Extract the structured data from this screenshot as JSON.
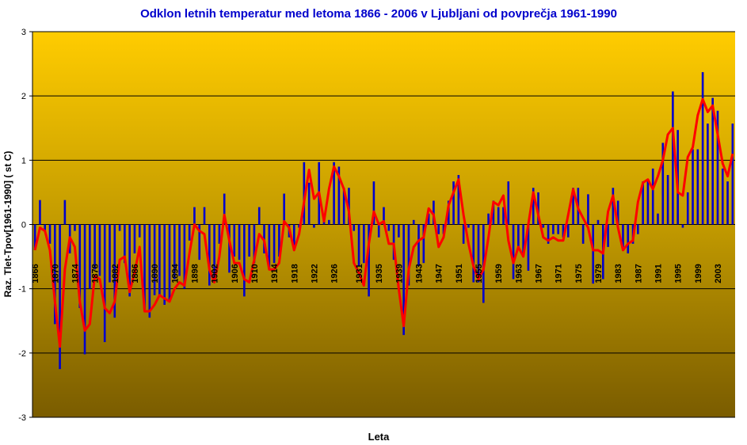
{
  "chart_data": {
    "type": "bar",
    "title": "Odklon letnih temperatur med letoma 1866 - 2006 v Ljubljani od povprečja 1961-1990",
    "y_label": "Raz. Tlet-Tpov[1961-1990] ( st C)",
    "x_label": "Leta",
    "categories": [
      "1866",
      null,
      null,
      null,
      "1870",
      null,
      null,
      null,
      "1874",
      null,
      null,
      null,
      "1878",
      null,
      null,
      null,
      "1882",
      null,
      null,
      null,
      "1886",
      null,
      null,
      null,
      "1890",
      null,
      null,
      null,
      "1894",
      null,
      null,
      null,
      "1898",
      null,
      null,
      null,
      "1902",
      null,
      null,
      null,
      "1906",
      null,
      null,
      null,
      "1910",
      null,
      null,
      null,
      "1914",
      null,
      null,
      null,
      "1918",
      null,
      null,
      null,
      "1922",
      null,
      null,
      null,
      "1926",
      null,
      null,
      null,
      null,
      "1931",
      null,
      null,
      null,
      "1935",
      null,
      null,
      null,
      "1939",
      null,
      null,
      null,
      "1943",
      null,
      null,
      null,
      "1947",
      null,
      null,
      null,
      "1951",
      null,
      null,
      null,
      "1955",
      null,
      null,
      null,
      "1959",
      null,
      null,
      null,
      "1963",
      null,
      null,
      null,
      "1967",
      null,
      null,
      null,
      "1971",
      null,
      null,
      null,
      "1975",
      null,
      null,
      null,
      "1979",
      null,
      null,
      null,
      "1983",
      null,
      null,
      null,
      "1987",
      null,
      null,
      null,
      "1991",
      null,
      null,
      null,
      "1995",
      null,
      null,
      null,
      "1999",
      null,
      null,
      null,
      "2003",
      null,
      null,
      null
    ],
    "series": [
      {
        "type": "bar",
        "color": "#0000cc",
        "values": [
          -0.4,
          0.38,
          -0.1,
          -0.3,
          -1.55,
          -2.25,
          0.38,
          -0.45,
          -0.1,
          -1.3,
          -2.02,
          -1.0,
          -0.7,
          -0.8,
          -1.83,
          -0.9,
          -1.45,
          -0.1,
          -0.6,
          -1.12,
          -0.45,
          -0.2,
          -1.32,
          -1.45,
          -1.1,
          -1.1,
          -1.25,
          -1.2,
          -0.85,
          -0.8,
          -1.0,
          -0.25,
          0.27,
          -0.55,
          0.27,
          -0.95,
          -0.85,
          -0.3,
          0.48,
          -0.75,
          -0.5,
          -0.55,
          -1.12,
          -0.5,
          -0.6,
          0.27,
          -0.45,
          -0.7,
          -0.6,
          -0.5,
          0.48,
          -0.2,
          -0.4,
          -0.05,
          0.97,
          0.65,
          -0.05,
          0.97,
          0.07,
          0.07,
          0.97,
          0.9,
          0.57,
          0.57,
          -0.1,
          -0.65,
          -0.6,
          -1.12,
          0.67,
          -0.2,
          0.27,
          -0.1,
          -0.55,
          -0.2,
          -1.72,
          -0.95,
          0.07,
          -0.65,
          -0.6,
          0.17,
          0.37,
          -0.15,
          -0.15,
          0.37,
          0.67,
          0.77,
          -0.3,
          -0.05,
          -0.9,
          -0.9,
          -1.22,
          0.17,
          0.37,
          0.27,
          0.27,
          0.67,
          -0.85,
          -0.35,
          -0.5,
          -0.72,
          0.57,
          0.5,
          -0.05,
          -0.3,
          -0.15,
          -0.15,
          -0.2,
          -0.2,
          0.57,
          0.57,
          -0.3,
          0.47,
          -0.92,
          0.07,
          -0.85,
          -0.35,
          0.57,
          0.37,
          -0.35,
          -0.45,
          -0.3,
          -0.15,
          0.67,
          0.67,
          0.87,
          0.17,
          1.27,
          0.77,
          2.07,
          1.47,
          -0.05,
          0.5,
          1.17,
          1.17,
          2.37,
          1.57,
          1.97,
          1.77,
          0.87,
          0.67,
          1.57
        ]
      },
      {
        "type": "line",
        "color": "#ff0000",
        "values": [
          -0.4,
          -0.05,
          -0.1,
          -0.4,
          -1.2,
          -1.9,
          -0.7,
          -0.2,
          -0.35,
          -1.2,
          -1.65,
          -1.55,
          -0.8,
          -0.85,
          -1.3,
          -1.38,
          -1.2,
          -0.55,
          -0.5,
          -1.05,
          -0.75,
          -0.35,
          -1.35,
          -1.35,
          -1.25,
          -1.1,
          -1.15,
          -1.2,
          -1.0,
          -0.9,
          -0.95,
          -0.45,
          0.0,
          -0.1,
          -0.15,
          -0.7,
          -0.9,
          -0.5,
          0.15,
          -0.25,
          -0.6,
          -0.6,
          -0.85,
          -0.9,
          -0.55,
          -0.15,
          -0.25,
          -0.7,
          -0.7,
          -0.6,
          0.05,
          -0.05,
          -0.4,
          -0.15,
          0.35,
          0.85,
          0.4,
          0.5,
          0.05,
          0.55,
          0.9,
          0.75,
          0.55,
          0.2,
          -0.6,
          -0.75,
          -0.95,
          -0.3,
          0.2,
          0.0,
          0.05,
          -0.3,
          -0.3,
          -1.0,
          -1.58,
          -0.7,
          -0.35,
          -0.25,
          -0.2,
          0.25,
          0.15,
          -0.35,
          -0.2,
          0.3,
          0.5,
          0.7,
          0.15,
          -0.3,
          -0.65,
          -0.85,
          -0.7,
          -0.2,
          0.35,
          0.3,
          0.45,
          -0.25,
          -0.6,
          -0.35,
          -0.5,
          0.0,
          0.5,
          0.15,
          -0.2,
          -0.25,
          -0.2,
          -0.25,
          -0.25,
          0.15,
          0.55,
          0.25,
          0.1,
          -0.05,
          -0.4,
          -0.4,
          -0.45,
          0.2,
          0.45,
          -0.05,
          -0.4,
          -0.3,
          -0.25,
          0.35,
          0.65,
          0.7,
          0.55,
          0.75,
          1.0,
          1.4,
          1.5,
          0.5,
          0.45,
          1.05,
          1.2,
          1.7,
          1.95,
          1.75,
          1.85,
          1.4,
          0.95,
          0.75,
          1.1
        ]
      }
    ],
    "ylim": [
      -3,
      3
    ],
    "yticks": [
      3,
      2,
      1,
      0,
      -1,
      -2,
      -3
    ],
    "grid": true
  }
}
